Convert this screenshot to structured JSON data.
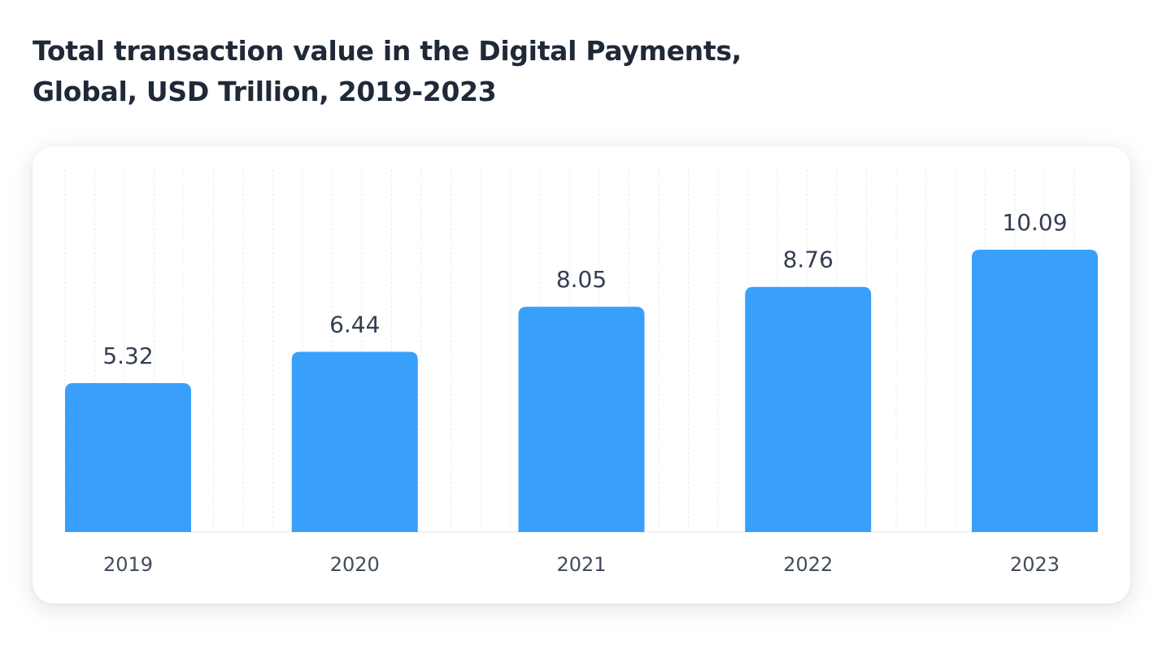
{
  "chart_data": {
    "type": "bar",
    "title_line1": "Total transaction value in the Digital Payments,",
    "title_line2": "Global, USD Trillion, 2019-2023",
    "categories": [
      "2019",
      "2020",
      "2021",
      "2022",
      "2023"
    ],
    "values": [
      5.32,
      6.44,
      8.05,
      8.76,
      10.09
    ],
    "value_labels": [
      "5.32",
      "6.44",
      "8.05",
      "8.76",
      "10.09"
    ],
    "xlabel": "",
    "ylabel": "",
    "ylim": [
      0,
      10.5
    ],
    "grid": "vertical dashed",
    "legend": "none",
    "colors": {
      "bar": "#389ffa",
      "text": "#1f2937"
    }
  }
}
